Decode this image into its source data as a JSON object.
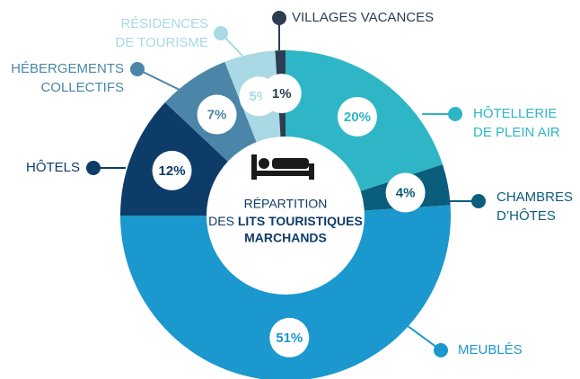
{
  "chart_data": {
    "type": "pie",
    "center_text": {
      "line1": "RÉPARTITION",
      "line2_lead": "DES",
      "line2_bold": "LITS TOURISTIQUES",
      "line3_bold": "MARCHANDS"
    },
    "categories": [
      [
        "HÔTELLERIE",
        "DE PLEIN AIR"
      ],
      [
        "CHAMBRES",
        "D’HÔTES"
      ],
      [
        "MEUBLÉS"
      ],
      [
        "HÔTELS"
      ],
      [
        "HÉBERGEMENTS",
        "COLLECTIFS"
      ],
      [
        "RÉSIDENCES",
        "DE TOURISME"
      ],
      [
        "VILLAGES VACANCES"
      ]
    ],
    "values": [
      20,
      4,
      51,
      12,
      7,
      5,
      1
    ],
    "value_labels": [
      "20%",
      "4%",
      "51%",
      "12%",
      "7%",
      "5%",
      "1%"
    ],
    "colors": [
      "#2fb6c6",
      "#0b5d7c",
      "#1b98cd",
      "#0e3c68",
      "#4b86a8",
      "#a8d9e4",
      "#2d3e52"
    ]
  }
}
